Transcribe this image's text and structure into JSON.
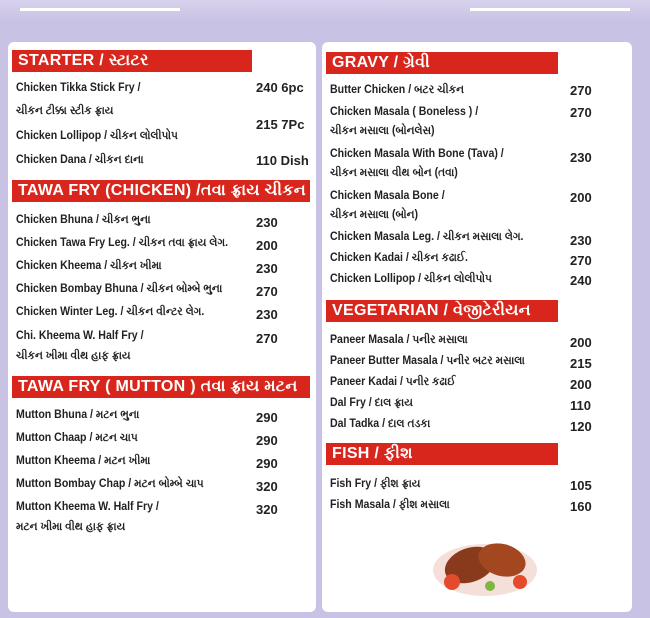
{
  "left": {
    "sections": [
      {
        "title": "STARTER / સ્ટાટર",
        "items": [
          {
            "name": "Chicken Tikka Stick Fry /",
            "name2": "ચીકન ટીક્કા સ્ટીક ફ્રાય",
            "price": "240 6pc"
          },
          {
            "name": "Chicken Lollipop / ચીકન લોલીપોપ",
            "price": "215 7Pc"
          },
          {
            "name": "Chicken Dana / ચીકન દાના",
            "price": "110 Dish"
          }
        ]
      },
      {
        "title": "TAWA FRY (CHICKEN) /તવા ફ્રાય ચીકન",
        "items": [
          {
            "name": "Chicken Bhuna / ચીકન ભુના",
            "price": "230"
          },
          {
            "name": "Chicken Tawa Fry Leg. / ચીકન તવા ફ્રાય લેગ.",
            "price": "200"
          },
          {
            "name": "Chicken Kheema / ચીકન ખીમા",
            "price": "230"
          },
          {
            "name": "Chicken Bombay Bhuna / ચીકન બોમ્બે ભુના",
            "price": "270"
          },
          {
            "name": "Chicken Winter Leg. / ચીકન વીન્ટર લેગ.",
            "price": "230"
          },
          {
            "name": "Chi.  Kheema W. Half Fry /",
            "name2": "ચીકન ખીમા વીથ હાફ ફ્રાય",
            "price": "270"
          }
        ]
      },
      {
        "title": "TAWA FRY ( MUTTON ) તવા ફ્રાય મટન",
        "items": [
          {
            "name": "Mutton Bhuna / મટન ભુના",
            "price": "290"
          },
          {
            "name": "Mutton Chaap / મટન ચાપ",
            "price": "290"
          },
          {
            "name": "Mutton Kheema / મટન ખીમા",
            "price": "290"
          },
          {
            "name": "Mutton Bombay Chap / મટન બોમ્બે ચાપ",
            "price": "320"
          },
          {
            "name": "Mutton Kheema W. Half Fry /",
            "name2": "મટન ખીમા વીથ હાફ ફ્રાય",
            "price": "320"
          }
        ]
      }
    ]
  },
  "right": {
    "sections": [
      {
        "title": "GRAVY / ગ્રેવી",
        "items": [
          {
            "name": "Butter Chicken  / બટર ચીકન",
            "price": "270"
          },
          {
            "name": "Chicken Masala ( Boneless )  /",
            "name2": "ચીકન મસાલા (બોનલેસ)",
            "price": "270"
          },
          {
            "name": "Chicken Masala With Bone (Tava) /",
            "name2": "ચીકન મસાલા વીથ બોન (તવા)",
            "price": "230"
          },
          {
            "name": "Chicken Masala  Bone  /",
            "name2": "ચીકન મસાલા (બોન)",
            "price": "200"
          },
          {
            "name": "Chicken Masala Leg. / ચીકન મસાલા લેગ.",
            "price": "230"
          },
          {
            "name": "Chicken Kadai / ચીકન કઢાઈ.",
            "price": "270"
          },
          {
            "name": "Chicken Lollipop  / ચીકન લોલીપોપ",
            "price": "240"
          }
        ]
      },
      {
        "title": "VEGETARIAN / વેજીટેરીયન",
        "items": [
          {
            "name": "Paneer Masala / પનીર મસાલા",
            "price": "200"
          },
          {
            "name": "Paneer Butter Masala / પનીર બટર મસાલા",
            "price": "215"
          },
          {
            "name": "Paneer Kadai  / પનીર કઢાઈ",
            "price": "200"
          },
          {
            "name": "Dal Fry / દાલ ફ્રાય",
            "price": "110"
          },
          {
            "name": "Dal Tadka  / દાલ તડકા",
            "price": "120"
          }
        ]
      },
      {
        "title": "FISH / ફીશ",
        "items": [
          {
            "name": "Fish Fry / ફીશ ફ્રાય",
            "price": "105"
          },
          {
            "name": "Fish Masala / ફીશ મસાલા",
            "price": "160"
          }
        ]
      }
    ]
  },
  "colors": {
    "header": "#d9261c",
    "background": "#c8c2e4"
  },
  "image": "fried-fish-plate"
}
